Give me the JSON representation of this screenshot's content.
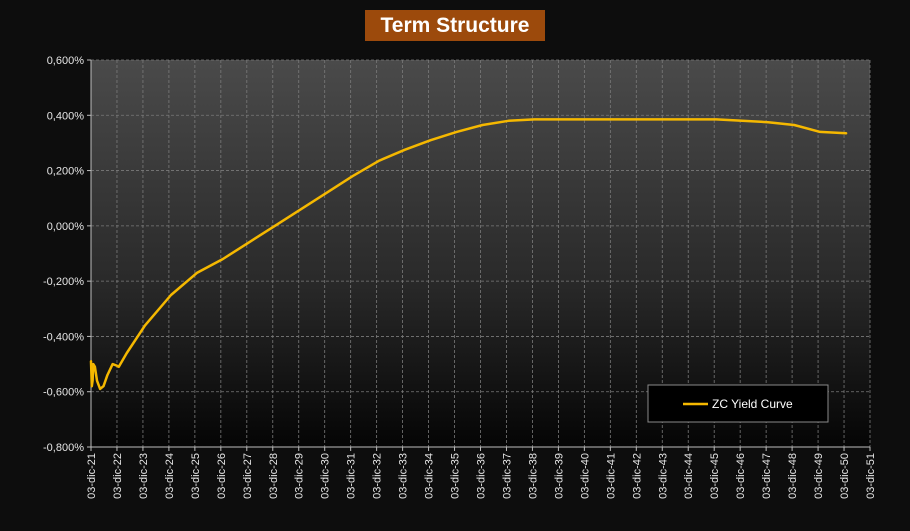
{
  "chart_data": {
    "type": "line",
    "title": "Term Structure",
    "xlabel": "",
    "ylabel": "",
    "ylim": [
      -0.8,
      0.6
    ],
    "y_ticks": [
      "0,600%",
      "0,400%",
      "0,200%",
      "0,000%",
      "-0,200%",
      "-0,400%",
      "-0,600%",
      "-0,800%"
    ],
    "x_ticks": [
      "03-dic-21",
      "03-dic-22",
      "03-dic-23",
      "03-dic-24",
      "03-dic-25",
      "03-dic-26",
      "03-dic-27",
      "03-dic-28",
      "03-dic-29",
      "03-dic-30",
      "03-dic-31",
      "03-dic-32",
      "03-dic-33",
      "03-dic-34",
      "03-dic-35",
      "03-dic-36",
      "03-dic-37",
      "03-dic-38",
      "03-dic-39",
      "03-dic-40",
      "03-dic-41",
      "03-dic-42",
      "03-dic-43",
      "03-dic-44",
      "03-dic-45",
      "03-dic-46",
      "03-dic-47",
      "03-dic-48",
      "03-dic-49",
      "03-dic-50",
      "03-dic-51"
    ],
    "grid": true,
    "legend_position": "bottom-right",
    "series": [
      {
        "name": "ZC Yield Curve",
        "color": "#f5b800",
        "x": [
          2021.92,
          2021.95,
          2021.98,
          2022.01,
          2022.07,
          2022.15,
          2022.27,
          2022.4,
          2022.55,
          2022.75,
          2022.9,
          2022.99,
          2023.3,
          2024.0,
          2025.0,
          2026.0,
          2027.0,
          2028.0,
          2029.0,
          2030.0,
          2031.0,
          2032.0,
          2033.0,
          2034.0,
          2035.0,
          2036.0,
          2037.0,
          2038.0,
          2039.0,
          2040.0,
          2041.0,
          2042.0,
          2043.0,
          2044.0,
          2045.0,
          2046.0,
          2047.0,
          2048.0,
          2049.0,
          2050.0,
          2051.0
        ],
        "y": [
          -0.49,
          -0.58,
          -0.56,
          -0.5,
          -0.51,
          -0.56,
          -0.59,
          -0.58,
          -0.54,
          -0.5,
          -0.505,
          -0.51,
          -0.46,
          -0.36,
          -0.25,
          -0.17,
          -0.12,
          -0.06,
          0.0,
          0.06,
          0.12,
          0.18,
          0.235,
          0.275,
          0.31,
          0.34,
          0.365,
          0.38,
          0.385,
          0.385,
          0.385,
          0.385,
          0.385,
          0.385,
          0.385,
          0.385,
          0.38,
          0.375,
          0.365,
          0.34,
          0.335
        ]
      }
    ]
  }
}
